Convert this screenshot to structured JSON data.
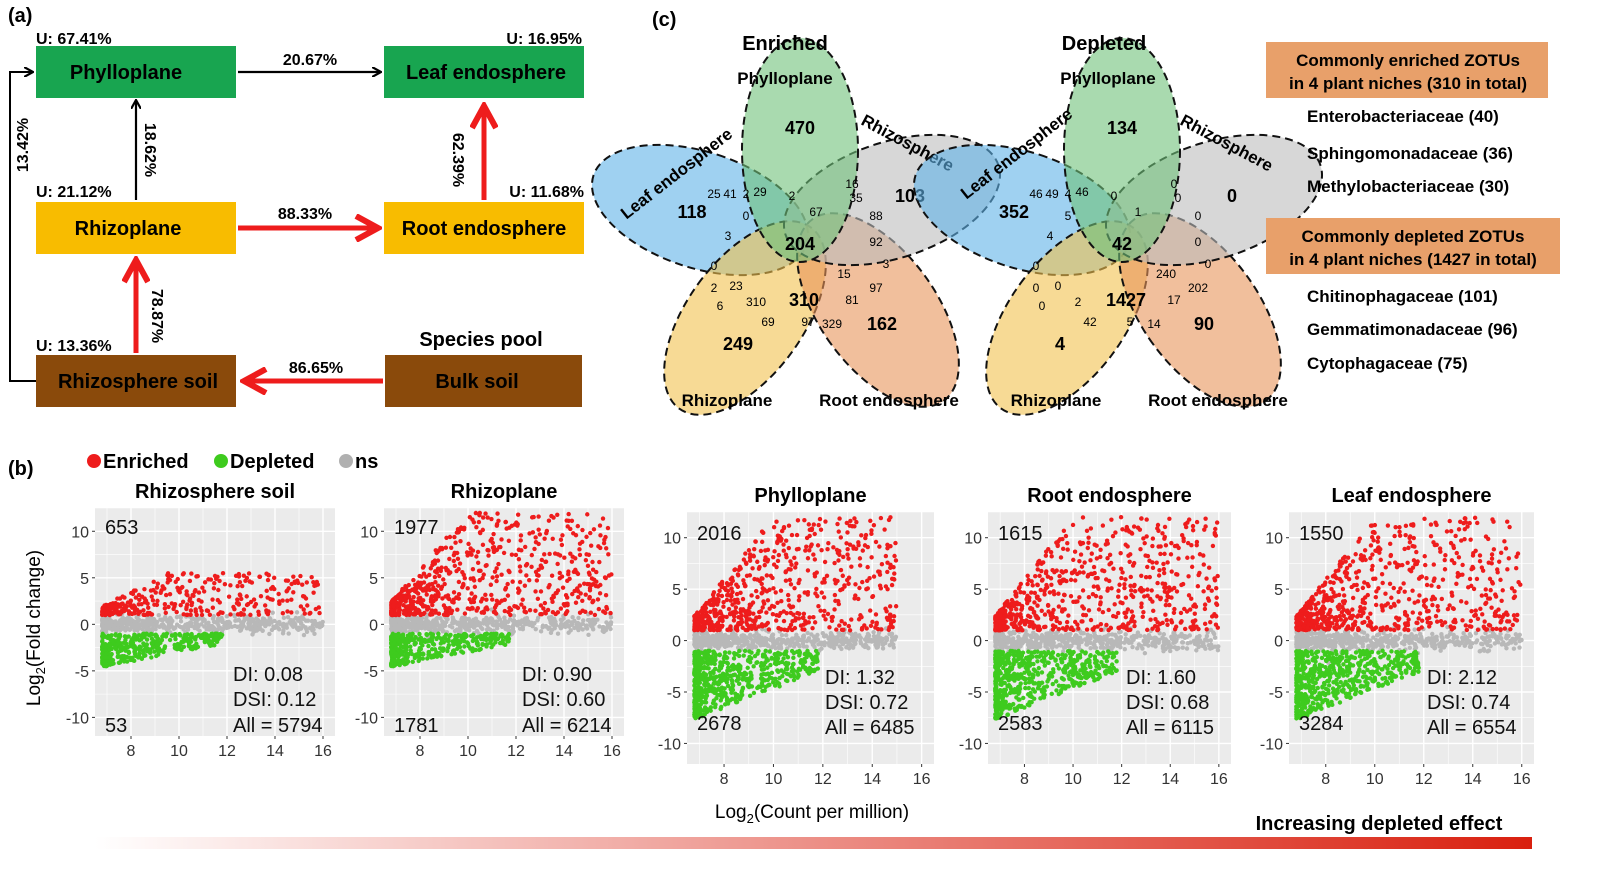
{
  "panel_a": {
    "label": "(a)",
    "boxes": {
      "phylloplane": {
        "label": "Phylloplane",
        "u": "U: 67.41%",
        "color": "#18a550"
      },
      "leaf": {
        "label": "Leaf endosphere",
        "u": "U: 16.95%",
        "color": "#18a550"
      },
      "rhizoplane": {
        "label": "Rhizoplane",
        "u": "U: 21.12%",
        "color": "#f8bc00"
      },
      "root": {
        "label": "Root endosphere",
        "u": "U: 11.68%",
        "color": "#f8bc00"
      },
      "soil": {
        "label": "Rhizosphere soil",
        "u": "U: 13.36%",
        "color": "#8a4a0b"
      },
      "bulk": {
        "label": "Bulk soil",
        "u": "",
        "color": "#8a4a0b"
      }
    },
    "species_pool": "Species pool",
    "arrows": {
      "phyllo_leaf": "20.67%",
      "rhizo_phyllo": "18.62%",
      "root_leaf": "62.39%",
      "rhizo_root": "88.33%",
      "soil_rhizo": "78.87%",
      "bulk_soil": "86.65%",
      "soil_phyllo": "13.42%"
    }
  },
  "panel_c": {
    "label": "(c)",
    "enriched": {
      "title": "Enriched",
      "petals": {
        "phyllo": "Phylloplane",
        "rhizo_s": "Rhizosphere",
        "leaf": "Leaf endosphere",
        "rhizop": "Rhizoplane",
        "root": "Root endosphere"
      },
      "numbers": [
        "470",
        "103",
        "118",
        "249",
        "162",
        "204",
        "310",
        "29",
        "2",
        "16",
        "35",
        "67",
        "88",
        "92",
        "3",
        "0",
        "15",
        "97",
        "81",
        "310",
        "69",
        "97",
        "329",
        "23",
        "6",
        "2",
        "0",
        "3",
        "25",
        "41",
        "2"
      ]
    },
    "depleted": {
      "title": "Depleted",
      "petals": {
        "phyllo": "Phylloplane",
        "rhizo_s": "Rhizosphere",
        "leaf": "Leaf endosphere",
        "rhizop": "Rhizoplane",
        "root": "Root endosphere"
      },
      "numbers": [
        "134",
        "0",
        "352",
        "4",
        "90",
        "42",
        "1427",
        "46",
        "0",
        "0",
        "0",
        "1",
        "0",
        "0",
        "0",
        "5",
        "240",
        "202",
        "17",
        "2",
        "42",
        "5",
        "14",
        "0",
        "0",
        "0",
        "0",
        "4",
        "46",
        "49",
        "4"
      ]
    },
    "enriched_box": {
      "line1": "Commonly enriched ZOTUs",
      "line2": "in 4 plant niches (310 in total)",
      "items": [
        "Enterobacteriaceae (40)",
        "Sphingomonadaceae (36)",
        "Methylobacteriaceae (30)"
      ]
    },
    "depleted_box": {
      "line1": "Commonly depleted ZOTUs",
      "line2": "in 4 plant niches (1427 in total)",
      "items": [
        "Chitinophagaceae (101)",
        "Gemmatimonadaceae (96)",
        "Cytophagaceae (75)"
      ]
    },
    "colors": {
      "blue": "#5fb3e8",
      "green": "#6fc27a",
      "gray": "#bdbdbd",
      "yellow": "#f2c14e",
      "orange": "#e8955a",
      "box": "#e8a06a"
    }
  },
  "panel_b": {
    "label": "(b)",
    "legend": [
      {
        "name": "Enriched",
        "color": "#ee1c1c"
      },
      {
        "name": "Depleted",
        "color": "#3ecb1e"
      },
      {
        "name": "ns",
        "color": "#b0b0b0"
      }
    ],
    "ylabel": "Log",
    "ylabel_sub": "2",
    "ylabel_rest": "(Fold change)",
    "xlabel": "Log",
    "xlabel_sub": "2",
    "xlabel_rest": "(Count per million)",
    "gradient_label": "Increasing depleted effect",
    "yticks": [
      "10",
      "5",
      "0",
      "-5",
      "-10"
    ],
    "xticks": [
      "8",
      "10",
      "12",
      "14",
      "16"
    ]
  },
  "chart_data": [
    {
      "type": "scatter",
      "title": "Rhizosphere soil",
      "enriched_count": "653",
      "depleted_count": "53",
      "di": "DI: 0.08",
      "dsi": "DSI: 0.12",
      "all": "All = 5794",
      "xlim": [
        6.5,
        16.5
      ],
      "ylim": [
        -12,
        12.5
      ],
      "x_max": 16,
      "enr_max": 5.5,
      "dep_min": -4.5
    },
    {
      "type": "scatter",
      "title": "Rhizoplane",
      "enriched_count": "1977",
      "depleted_count": "1781",
      "di": "DI: 0.90",
      "dsi": "DSI: 0.60",
      "all": "All = 6214",
      "xlim": [
        6.5,
        16.5
      ],
      "ylim": [
        -12,
        12.5
      ],
      "x_max": 16,
      "enr_max": 12,
      "dep_min": -4.5
    },
    {
      "type": "scatter",
      "title": "Phylloplane",
      "enriched_count": "2016",
      "depleted_count": "2678",
      "di": "DI: 1.32",
      "dsi": "DSI: 0.72",
      "all": "All = 6485",
      "xlim": [
        6.5,
        16.5
      ],
      "ylim": [
        -12,
        12.5
      ],
      "x_max": 15,
      "enr_max": 12,
      "dep_min": -7.5
    },
    {
      "type": "scatter",
      "title": "Root endosphere",
      "enriched_count": "1615",
      "depleted_count": "2583",
      "di": "DI: 1.60",
      "dsi": "DSI: 0.68",
      "all": "All = 6115",
      "xlim": [
        6.5,
        16.5
      ],
      "ylim": [
        -12,
        12.5
      ],
      "x_max": 16,
      "enr_max": 12,
      "dep_min": -7.5
    },
    {
      "type": "scatter",
      "title": "Leaf endosphere",
      "enriched_count": "1550",
      "depleted_count": "3284",
      "di": "DI: 2.12",
      "dsi": "DSI: 0.74",
      "all": "All = 6554",
      "xlim": [
        6.5,
        16.5
      ],
      "ylim": [
        -12,
        12.5
      ],
      "x_max": 16,
      "enr_max": 12,
      "dep_min": -7.5
    }
  ]
}
